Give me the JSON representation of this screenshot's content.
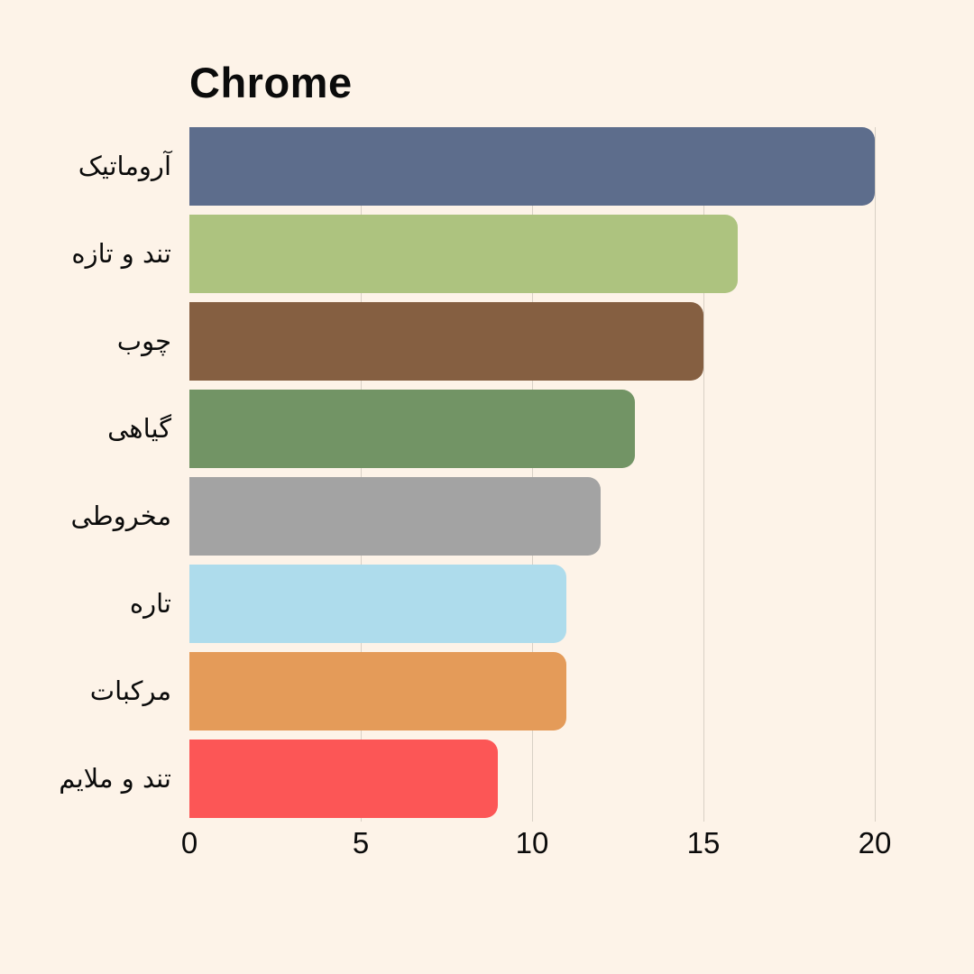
{
  "background": "#fdf3e8",
  "text_color": "#0b0b0b",
  "gridline_color": "#d8d0c5",
  "chart_data": {
    "type": "bar",
    "orientation": "horizontal",
    "title": "Chrome",
    "categories": [
      "آروماتیک",
      "تند و تازه",
      "چوب",
      "گیاهی",
      "مخروطی",
      "تاره",
      "مرکبات",
      "تند و ملایم"
    ],
    "values": [
      20,
      16,
      15,
      13,
      12,
      11,
      11,
      9
    ],
    "bar_colors": [
      "#5d6d8c",
      "#adc37f",
      "#855f41",
      "#729465",
      "#a3a3a3",
      "#aedcec",
      "#e49b59",
      "#fc5656"
    ],
    "xlabel": "",
    "ylabel": "",
    "xlim": [
      0,
      20
    ],
    "x_ticks": [
      0,
      5,
      10,
      15,
      20
    ],
    "grid": "vertical-only",
    "legend": false
  }
}
